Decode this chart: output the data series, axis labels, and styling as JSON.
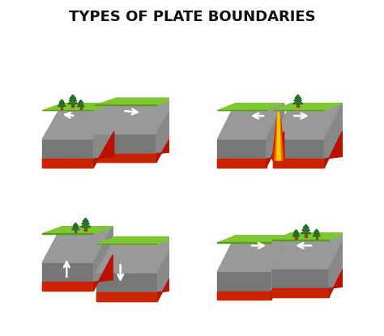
{
  "title": "TYPES OF PLATE BOUNDARIES",
  "title_fontsize": 13,
  "title_color": "#111111",
  "background_color": "#ffffff",
  "grass_color": "#7dc832",
  "grass_dark": "#5a9a20",
  "rock_color": "#999999",
  "rock_dark": "#777777",
  "rock_side": "#888888",
  "lava_color": "#cc2200",
  "lava_bright": "#ff6600",
  "lava_yellow": "#ffcc00",
  "tree_green": "#2d7a2d",
  "tree_dark": "#1a5a1a",
  "trunk_color": "#8B4513",
  "arrow_color": "#ffffff"
}
